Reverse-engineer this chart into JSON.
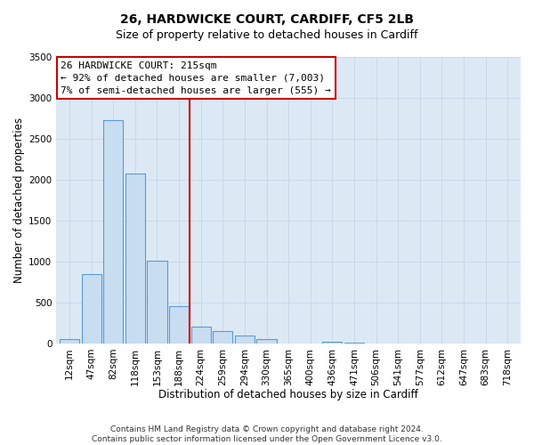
{
  "title": "26, HARDWICKE COURT, CARDIFF, CF5 2LB",
  "subtitle": "Size of property relative to detached houses in Cardiff",
  "xlabel": "Distribution of detached houses by size in Cardiff",
  "ylabel": "Number of detached properties",
  "bar_labels": [
    "12sqm",
    "47sqm",
    "82sqm",
    "118sqm",
    "153sqm",
    "188sqm",
    "224sqm",
    "259sqm",
    "294sqm",
    "330sqm",
    "365sqm",
    "400sqm",
    "436sqm",
    "471sqm",
    "506sqm",
    "541sqm",
    "577sqm",
    "612sqm",
    "647sqm",
    "683sqm",
    "718sqm"
  ],
  "bar_values": [
    55,
    850,
    2730,
    2070,
    1010,
    460,
    200,
    155,
    100,
    55,
    0,
    0,
    20,
    10,
    0,
    0,
    0,
    0,
    0,
    0,
    0
  ],
  "bar_color": "#c9ddf0",
  "bar_edge_color": "#5b9bd5",
  "vline_color": "#cc0000",
  "annotation_title": "26 HARDWICKE COURT: 215sqm",
  "annotation_line1": "← 92% of detached houses are smaller (7,003)",
  "annotation_line2": "7% of semi-detached houses are larger (555) →",
  "annotation_box_color": "#ffffff",
  "annotation_box_edge": "#cc0000",
  "ylim": [
    0,
    3500
  ],
  "yticks": [
    0,
    500,
    1000,
    1500,
    2000,
    2500,
    3000,
    3500
  ],
  "footer1": "Contains HM Land Registry data © Crown copyright and database right 2024.",
  "footer2": "Contains public sector information licensed under the Open Government Licence v3.0.",
  "title_fontsize": 10,
  "subtitle_fontsize": 9,
  "tick_fontsize": 7.5,
  "label_fontsize": 8.5,
  "footer_fontsize": 6.5,
  "annot_fontsize": 8,
  "grid_color": "#c8d8e8",
  "bg_color": "#dce9f5"
}
